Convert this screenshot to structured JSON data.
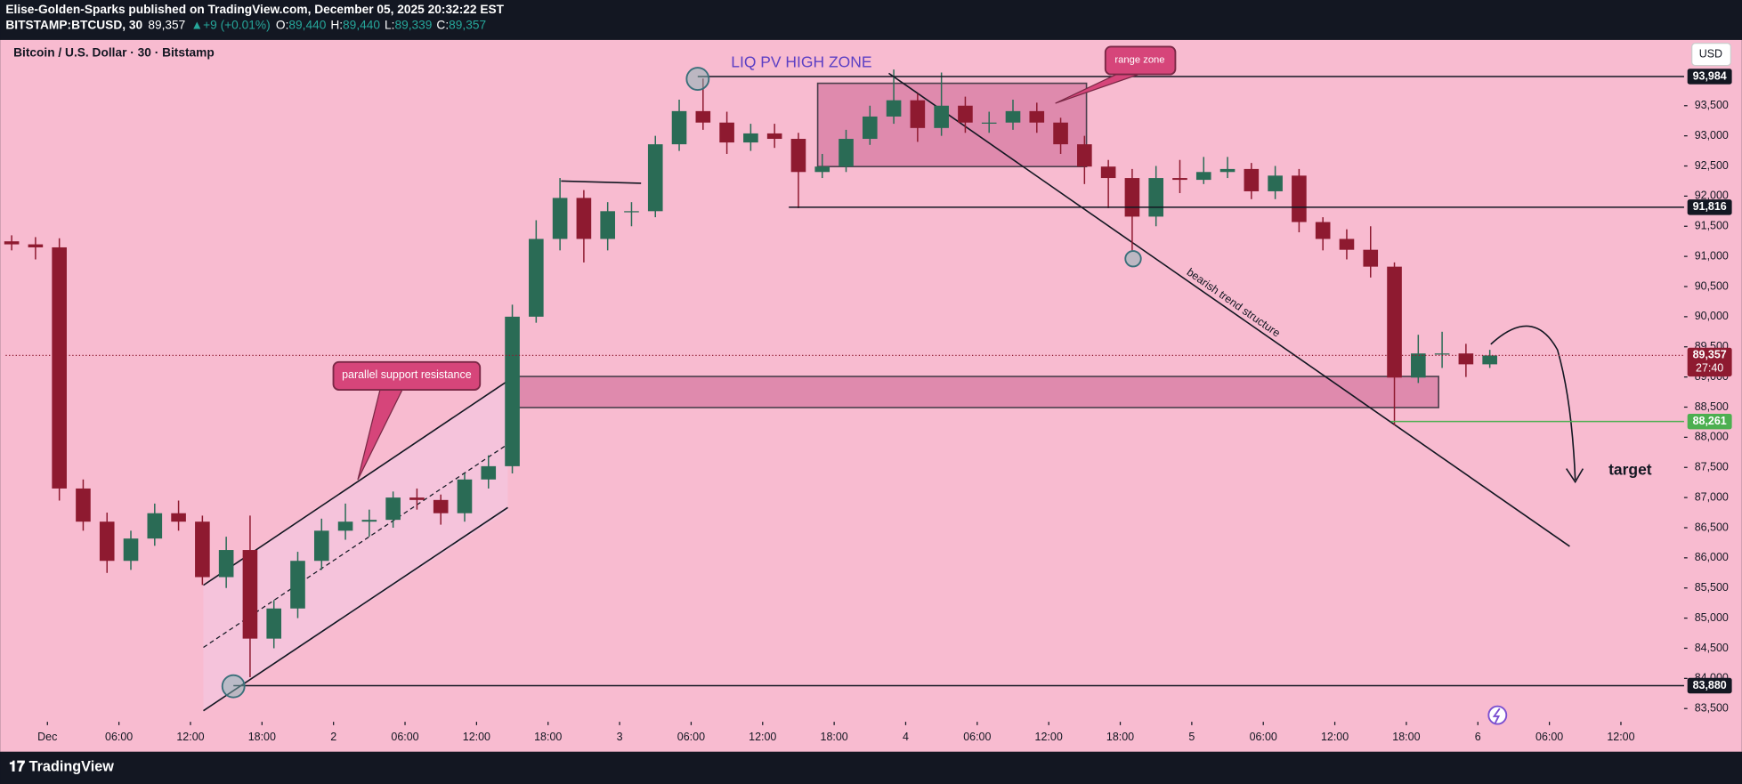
{
  "header": {
    "publisher": "Elise-Golden-Sparks published on TradingView.com, December 05, 2025 20:32:22 EST",
    "symbol": "BITSTAMP:BTCUSD, 30",
    "price": "89,357",
    "change": "+9 (+0.01%)",
    "ohlc": [
      {
        "k": "O:",
        "v": "89,440"
      },
      {
        "k": "H:",
        "v": "89,440"
      },
      {
        "k": "L:",
        "v": "89,339"
      },
      {
        "k": "C:",
        "v": "89,357"
      }
    ]
  },
  "footer": {
    "brand": "TradingView"
  },
  "chart_data": {
    "type": "candlestick",
    "title": "Bitcoin / U.S. Dollar · 30 · Bitstamp",
    "currency": "USD",
    "up_color": "#2a6b55",
    "down_color": "#8e1a30",
    "x": [
      -3,
      -1,
      1,
      3,
      5,
      7,
      9,
      11,
      13,
      15,
      17,
      19,
      21,
      23,
      25,
      27,
      29,
      31,
      33,
      35,
      37,
      39,
      41,
      43,
      45,
      47,
      49,
      51,
      53,
      55,
      57,
      59,
      61,
      63,
      65,
      67,
      69,
      71,
      73,
      75,
      77,
      79,
      81,
      83,
      85,
      87,
      89,
      91,
      93,
      95,
      97,
      99,
      101,
      103,
      105,
      107,
      109,
      111,
      113,
      115,
      117,
      119,
      121
    ],
    "open": [
      91250,
      91200,
      91150,
      87150,
      86600,
      85950,
      86320,
      86740,
      86600,
      85680,
      86130,
      84660,
      85160,
      85950,
      86450,
      86600,
      86630,
      87000,
      86960,
      86740,
      87300,
      87520,
      90000,
      91290,
      91970,
      91290,
      91750,
      91750,
      92860,
      93410,
      93220,
      92890,
      93040,
      92950,
      92400,
      92490,
      92950,
      93320,
      93590,
      93130,
      93500,
      93220,
      93220,
      93410,
      93220,
      92860,
      92490,
      92300,
      91660,
      92300,
      92270,
      92400,
      92450,
      92080,
      92340,
      91570,
      91290,
      91110,
      90830,
      88990,
      89390,
      89390,
      89210
    ],
    "high": [
      91350,
      91320,
      91300,
      87300,
      86750,
      86450,
      86900,
      86950,
      86700,
      86350,
      86700,
      85300,
      86100,
      86650,
      86900,
      86800,
      87100,
      87150,
      87050,
      87400,
      87700,
      90200,
      91600,
      92300,
      92100,
      91900,
      91900,
      93000,
      93600,
      93950,
      93400,
      93200,
      93200,
      93050,
      92700,
      93100,
      93500,
      94100,
      93700,
      94050,
      93650,
      93400,
      93600,
      93550,
      93300,
      93000,
      92600,
      92450,
      92500,
      92600,
      92650,
      92650,
      92550,
      92500,
      92450,
      91650,
      91450,
      91500,
      90900,
      89700,
      89750,
      89550,
      89450
    ],
    "low": [
      91100,
      90950,
      86950,
      86450,
      85750,
      85800,
      86200,
      86450,
      85550,
      85500,
      84020,
      84500,
      85000,
      85800,
      86300,
      86350,
      86500,
      86800,
      86550,
      86600,
      87150,
      87400,
      89900,
      91100,
      90900,
      91100,
      91500,
      91650,
      92750,
      93100,
      92700,
      92750,
      92800,
      91800,
      92300,
      92400,
      92850,
      93200,
      92900,
      93000,
      93050,
      93050,
      93100,
      93050,
      92700,
      92200,
      91800,
      91100,
      91500,
      92050,
      92200,
      92300,
      91950,
      91950,
      91400,
      91100,
      90950,
      90650,
      88200,
      88900,
      89150,
      89000,
      89150
    ],
    "close": [
      91200,
      91150,
      87150,
      86600,
      85950,
      86320,
      86740,
      86600,
      85680,
      86130,
      84660,
      85160,
      85950,
      86450,
      86600,
      86630,
      87000,
      86960,
      86740,
      87300,
      87520,
      90000,
      91290,
      91970,
      91290,
      91750,
      91750,
      92860,
      93410,
      93220,
      92890,
      93040,
      92950,
      92400,
      92490,
      92950,
      93320,
      93590,
      93130,
      93500,
      93220,
      93220,
      93410,
      93220,
      92860,
      92490,
      92300,
      91660,
      92300,
      92270,
      92400,
      92450,
      92080,
      92340,
      91570,
      91290,
      91110,
      90830,
      88990,
      89390,
      89390,
      89210,
      89357
    ],
    "xlim": [
      -3.5,
      137.3
    ],
    "ylim": [
      83280,
      94590
    ],
    "xticks": [
      {
        "value": 0,
        "label": "Dec"
      },
      {
        "value": 6,
        "label": "06:00"
      },
      {
        "value": 12,
        "label": "12:00"
      },
      {
        "value": 18,
        "label": "18:00"
      },
      {
        "value": 24,
        "label": "2"
      },
      {
        "value": 30,
        "label": "06:00"
      },
      {
        "value": 36,
        "label": "12:00"
      },
      {
        "value": 42,
        "label": "18:00"
      },
      {
        "value": 48,
        "label": "3"
      },
      {
        "value": 54,
        "label": "06:00"
      },
      {
        "value": 60,
        "label": "12:00"
      },
      {
        "value": 66,
        "label": "18:00"
      },
      {
        "value": 72,
        "label": "4"
      },
      {
        "value": 78,
        "label": "06:00"
      },
      {
        "value": 84,
        "label": "12:00"
      },
      {
        "value": 90,
        "label": "18:00"
      },
      {
        "value": 96,
        "label": "5"
      },
      {
        "value": 102,
        "label": "06:00"
      },
      {
        "value": 108,
        "label": "12:00"
      },
      {
        "value": 114,
        "label": "18:00"
      },
      {
        "value": 120,
        "label": "6"
      },
      {
        "value": 126,
        "label": "06:00"
      },
      {
        "value": 132,
        "label": "12:00"
      }
    ],
    "yticks": [
      {
        "value": 83500,
        "label": "83,500"
      },
      {
        "value": 84000,
        "label": "84,000"
      },
      {
        "value": 84500,
        "label": "84,500"
      },
      {
        "value": 85000,
        "label": "85,000"
      },
      {
        "value": 85500,
        "label": "85,500"
      },
      {
        "value": 86000,
        "label": "86,000"
      },
      {
        "value": 86500,
        "label": "86,500"
      },
      {
        "value": 87000,
        "label": "87,000"
      },
      {
        "value": 87500,
        "label": "87,500"
      },
      {
        "value": 88000,
        "label": "88,000"
      },
      {
        "value": 88500,
        "label": "88,500"
      },
      {
        "value": 89000,
        "label": "89,000"
      },
      {
        "value": 89500,
        "label": "89,500"
      },
      {
        "value": 90000,
        "label": "90,000"
      },
      {
        "value": 90500,
        "label": "90,500"
      },
      {
        "value": 91000,
        "label": "91,000"
      },
      {
        "value": 91500,
        "label": "91,500"
      },
      {
        "value": 92000,
        "label": "92,000"
      },
      {
        "value": 92500,
        "label": "92,500"
      },
      {
        "value": 93000,
        "label": "93,000"
      },
      {
        "value": 93500,
        "label": "93,500"
      }
    ],
    "price_labels": [
      {
        "value": 93984,
        "label": "93,984",
        "color": "#131722"
      },
      {
        "value": 91816,
        "label": "91,816",
        "color": "#131722"
      },
      {
        "value": 88261,
        "label": "88,261",
        "color": "#4caf50"
      },
      {
        "value": 83880,
        "label": "83,880",
        "color": "#131722"
      }
    ],
    "last_price": {
      "value": 89357,
      "label": "89,357",
      "countdown": "27:40",
      "color": "#8e1a30"
    },
    "annotations": [
      "LIQ PV HIGH ZONE",
      "range zone",
      "parallel support resistance",
      "bearish trend structure",
      "target"
    ]
  }
}
